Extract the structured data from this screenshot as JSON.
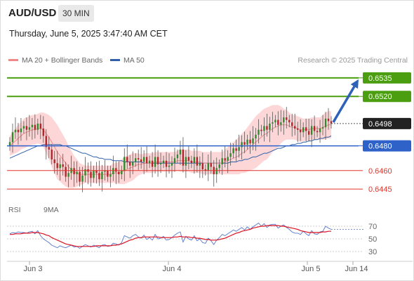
{
  "header": {
    "symbol": "AUD/USD",
    "timeframe": "30 MIN"
  },
  "datetime": "Thursday, June 5, 2025 3:47:40 AM CET",
  "legend": {
    "ma20": {
      "label": "MA 20 + Bollinger Bands",
      "color": "#f08a8a"
    },
    "ma50": {
      "label": "MA 50",
      "color": "#2e5fa8"
    }
  },
  "credit": "Research © 2025 Trading Central",
  "rsi_legend": {
    "rsi": {
      "label": "RSI",
      "color": "#5577cc"
    },
    "ma9": {
      "label": "9MA",
      "color": "#dd1122"
    }
  },
  "chart_data": [
    {
      "type": "candlestick",
      "ylim": [
        0.6436,
        0.6544
      ],
      "x_labels": [
        "Jun 3",
        "Jun 4",
        "Jun 5",
        "Jun 14"
      ],
      "current_price": {
        "value": 0.6498,
        "label": "0.6498"
      },
      "levels": [
        {
          "value": 0.6535,
          "label": "0.6535",
          "kind": "target",
          "color": "#4a9e10"
        },
        {
          "value": 0.652,
          "label": "0.6520",
          "kind": "resistance",
          "color": "#4a9e10"
        },
        {
          "value": 0.648,
          "label": "0.6480",
          "kind": "pivot",
          "color": "#2e62c9"
        },
        {
          "value": 0.646,
          "label": "0.6460",
          "kind": "support",
          "color": "#e0342a"
        },
        {
          "value": 0.6445,
          "label": "0.6445",
          "kind": "support",
          "color": "#e0342a"
        }
      ],
      "close": [
        0.6483,
        0.6491,
        0.6493,
        0.6491,
        0.6494,
        0.6496,
        0.6493,
        0.6495,
        0.6497,
        0.6493,
        0.6498,
        0.6494,
        0.6488,
        0.6479,
        0.6477,
        0.6469,
        0.6466,
        0.6462,
        0.6465,
        0.6463,
        0.6455,
        0.6458,
        0.6462,
        0.6457,
        0.6459,
        0.6451,
        0.6456,
        0.6461,
        0.6459,
        0.6454,
        0.646,
        0.6458,
        0.6453,
        0.6459,
        0.646,
        0.6455,
        0.6457,
        0.6462,
        0.6459,
        0.6457,
        0.646,
        0.6471,
        0.6467,
        0.6464,
        0.6467,
        0.647,
        0.6469,
        0.6467,
        0.6471,
        0.6466,
        0.6468,
        0.6463,
        0.6471,
        0.6465,
        0.6466,
        0.6468,
        0.6463,
        0.6464,
        0.6466,
        0.647,
        0.6473,
        0.6477,
        0.6464,
        0.6471,
        0.6468,
        0.6466,
        0.6471,
        0.6464,
        0.6466,
        0.6461,
        0.646,
        0.6466,
        0.6463,
        0.6457,
        0.6462,
        0.6465,
        0.647,
        0.6468,
        0.6471,
        0.6474,
        0.6478,
        0.6476,
        0.6479,
        0.6483,
        0.6481,
        0.6485,
        0.6482,
        0.6486,
        0.6489,
        0.6493,
        0.6492,
        0.6496,
        0.6493,
        0.6498,
        0.6499,
        0.6501,
        0.6497,
        0.6499,
        0.6503,
        0.6501,
        0.6499,
        0.6496,
        0.6494,
        0.6493,
        0.6491,
        0.6495,
        0.6492,
        0.6489,
        0.6496,
        0.6492,
        0.6491,
        0.6494,
        0.6495,
        0.6502,
        0.65,
        0.6498
      ],
      "ma20": [
        0.648,
        0.6482,
        0.6484,
        0.6486,
        0.6488,
        0.649,
        0.6491,
        0.6492,
        0.6493,
        0.6493,
        0.6494,
        0.6494,
        0.6493,
        0.649,
        0.6487,
        0.6483,
        0.6479,
        0.6475,
        0.6472,
        0.6469,
        0.6466,
        0.6463,
        0.6461,
        0.6459,
        0.6458,
        0.6457,
        0.6457,
        0.6457,
        0.6457,
        0.6457,
        0.6457,
        0.6457,
        0.6457,
        0.6457,
        0.6457,
        0.6457,
        0.6457,
        0.6458,
        0.6458,
        0.6458,
        0.6459,
        0.646,
        0.6461,
        0.6462,
        0.6463,
        0.6464,
        0.6465,
        0.6465,
        0.6466,
        0.6466,
        0.6466,
        0.6466,
        0.6467,
        0.6467,
        0.6467,
        0.6467,
        0.6467,
        0.6467,
        0.6467,
        0.6467,
        0.6468,
        0.6468,
        0.6468,
        0.6468,
        0.6468,
        0.6467,
        0.6467,
        0.6467,
        0.6467,
        0.6466,
        0.6466,
        0.6466,
        0.6466,
        0.6466,
        0.6466,
        0.6466,
        0.6466,
        0.6467,
        0.6468,
        0.6469,
        0.647,
        0.6471,
        0.6472,
        0.6474,
        0.6475,
        0.6477,
        0.6479,
        0.6481,
        0.6483,
        0.6485,
        0.6487,
        0.6489,
        0.649,
        0.6492,
        0.6494,
        0.6495,
        0.6496,
        0.6497,
        0.6497,
        0.6497,
        0.6496,
        0.6495,
        0.6495,
        0.6494,
        0.6493,
        0.6493,
        0.6493,
        0.6493,
        0.6494,
        0.6494,
        0.6494,
        0.6494,
        0.6495,
        0.6496,
        0.6497,
        0.6497
      ],
      "bb_width": [
        0.0008,
        0.0009,
        0.001,
        0.0011,
        0.0011,
        0.0012,
        0.0012,
        0.0012,
        0.0012,
        0.0012,
        0.0012,
        0.0013,
        0.0014,
        0.0016,
        0.0018,
        0.002,
        0.0021,
        0.0022,
        0.0021,
        0.002,
        0.0019,
        0.0017,
        0.0015,
        0.0013,
        0.0011,
        0.0009,
        0.0008,
        0.0007,
        0.0007,
        0.0007,
        0.0007,
        0.0007,
        0.0007,
        0.0007,
        0.0007,
        0.0007,
        0.0007,
        0.0008,
        0.0008,
        0.0009,
        0.001,
        0.0011,
        0.0011,
        0.0011,
        0.0011,
        0.001,
        0.0009,
        0.0008,
        0.0008,
        0.0008,
        0.0008,
        0.0008,
        0.0008,
        0.0008,
        0.0008,
        0.0008,
        0.0008,
        0.0008,
        0.0008,
        0.0008,
        0.0008,
        0.0009,
        0.0009,
        0.0009,
        0.0009,
        0.0009,
        0.0009,
        0.0009,
        0.0009,
        0.0009,
        0.0009,
        0.0009,
        0.0009,
        0.0009,
        0.0009,
        0.0009,
        0.0009,
        0.001,
        0.0011,
        0.0012,
        0.0013,
        0.0014,
        0.0015,
        0.0016,
        0.0017,
        0.0018,
        0.0019,
        0.002,
        0.0021,
        0.0021,
        0.0021,
        0.0021,
        0.0021,
        0.002,
        0.0019,
        0.0018,
        0.0017,
        0.0015,
        0.0013,
        0.0012,
        0.0011,
        0.001,
        0.001,
        0.001,
        0.001,
        0.0009,
        0.0009,
        0.0009,
        0.0009,
        0.0009,
        0.0009,
        0.0009,
        0.001,
        0.0011,
        0.0011,
        0.0011
      ],
      "ma50": [
        0.647,
        0.6471,
        0.6472,
        0.6473,
        0.6474,
        0.6475,
        0.6476,
        0.6477,
        0.6478,
        0.6479,
        0.648,
        0.648,
        0.6481,
        0.6481,
        0.6481,
        0.6481,
        0.6481,
        0.6481,
        0.6481,
        0.648,
        0.648,
        0.6479,
        0.6478,
        0.6477,
        0.6476,
        0.6475,
        0.6474,
        0.6474,
        0.6473,
        0.6472,
        0.6471,
        0.6471,
        0.647,
        0.647,
        0.6469,
        0.6469,
        0.6469,
        0.6468,
        0.6468,
        0.6468,
        0.6468,
        0.6467,
        0.6467,
        0.6467,
        0.6467,
        0.6467,
        0.6467,
        0.6467,
        0.6466,
        0.6466,
        0.6466,
        0.6466,
        0.6466,
        0.6466,
        0.6466,
        0.6466,
        0.6466,
        0.6466,
        0.6466,
        0.6466,
        0.6466,
        0.6466,
        0.6466,
        0.6466,
        0.6466,
        0.6466,
        0.6466,
        0.6466,
        0.6466,
        0.6466,
        0.6466,
        0.6466,
        0.6466,
        0.6466,
        0.6466,
        0.6466,
        0.6466,
        0.6466,
        0.6466,
        0.6467,
        0.6467,
        0.6467,
        0.6468,
        0.6468,
        0.6469,
        0.6469,
        0.647,
        0.6471,
        0.6471,
        0.6472,
        0.6473,
        0.6474,
        0.6474,
        0.6475,
        0.6476,
        0.6477,
        0.6478,
        0.6478,
        0.6479,
        0.648,
        0.648,
        0.6481,
        0.6481,
        0.6482,
        0.6482,
        0.6483,
        0.6483,
        0.6484,
        0.6484,
        0.6485,
        0.6485,
        0.6486,
        0.6486,
        0.6487,
        0.6487,
        0.6488
      ]
    },
    {
      "type": "line",
      "name": "RSI",
      "ylim": [
        25,
        75
      ],
      "yticks": [
        70,
        50,
        30
      ],
      "series": [
        {
          "name": "RSI",
          "color": "#5577cc",
          "values": [
            58,
            60,
            59,
            61,
            60,
            60,
            59,
            61,
            62,
            58,
            63,
            55,
            50,
            47,
            44,
            40,
            38,
            36,
            39,
            37,
            36,
            38,
            40,
            37,
            38,
            35,
            38,
            41,
            39,
            37,
            40,
            38,
            36,
            40,
            41,
            38,
            39,
            43,
            42,
            40,
            44,
            55,
            53,
            51,
            55,
            57,
            53,
            51,
            56,
            49,
            52,
            48,
            57,
            50,
            51,
            54,
            48,
            49,
            52,
            56,
            59,
            61,
            45,
            54,
            50,
            48,
            55,
            47,
            50,
            44,
            43,
            51,
            47,
            41,
            48,
            52,
            57,
            55,
            58,
            61,
            64,
            62,
            65,
            68,
            64,
            69,
            65,
            69,
            72,
            75,
            70,
            74,
            68,
            72,
            73,
            73,
            67,
            70,
            72,
            68,
            65,
            61,
            59,
            59,
            57,
            62,
            58,
            55,
            63,
            58,
            57,
            61,
            62,
            70,
            67,
            65
          ]
        },
        {
          "name": "9MA",
          "color": "#dd1122",
          "values": [
            57,
            57,
            58,
            58,
            58,
            59,
            59,
            59,
            60,
            60,
            60,
            59,
            58,
            56,
            55,
            52,
            50,
            48,
            46,
            44,
            42,
            41,
            40,
            39,
            38,
            38,
            38,
            38,
            38,
            38,
            38,
            39,
            39,
            39,
            39,
            39,
            39,
            40,
            40,
            41,
            42,
            44,
            46,
            48,
            49,
            51,
            52,
            52,
            53,
            53,
            53,
            53,
            53,
            53,
            52,
            52,
            52,
            52,
            52,
            53,
            53,
            54,
            53,
            53,
            53,
            52,
            52,
            51,
            51,
            50,
            49,
            49,
            48,
            48,
            48,
            49,
            50,
            51,
            53,
            55,
            57,
            59,
            60,
            62,
            63,
            64,
            65,
            67,
            68,
            69,
            70,
            70,
            71,
            71,
            71,
            71,
            71,
            70,
            70,
            69,
            68,
            67,
            66,
            65,
            63,
            62,
            61,
            60,
            60,
            60,
            60,
            60,
            61,
            61,
            62,
            62
          ]
        }
      ]
    }
  ]
}
